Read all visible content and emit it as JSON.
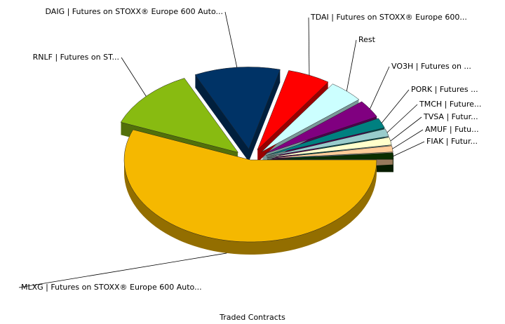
{
  "chart_data": {
    "type": "pie",
    "title": "Traded Contracts",
    "categories": [
      "FIAK | Futur...",
      "AMUF | Futu...",
      "TVSA | Futur...",
      "TMCH | Future...",
      "PORK | Futures ...",
      "VO3H | Futures on ...",
      "Rest",
      "TDAI | Futures on STOXX® Europe 600...",
      "DAIG | Futures on STOXX® Europe 600 Auto...",
      "RNLF | Futures on ST...",
      "MLXG | Futures on STOXX® Europe 600 Auto..."
    ],
    "values": [
      1.3,
      1.2,
      1.5,
      1.5,
      2,
      3.5,
      4.5,
      5.5,
      11,
      12,
      56
    ],
    "colors": [
      "#0b2e00",
      "#ffcc99",
      "#ffffcc",
      "#99cccc",
      "#008080",
      "#800080",
      "#ccffff",
      "#ff0000",
      "#003366",
      "#88bb11",
      "#f5b800"
    ],
    "exploded": [
      true,
      true,
      true,
      true,
      true,
      true,
      true,
      true,
      true,
      true,
      false
    ]
  }
}
